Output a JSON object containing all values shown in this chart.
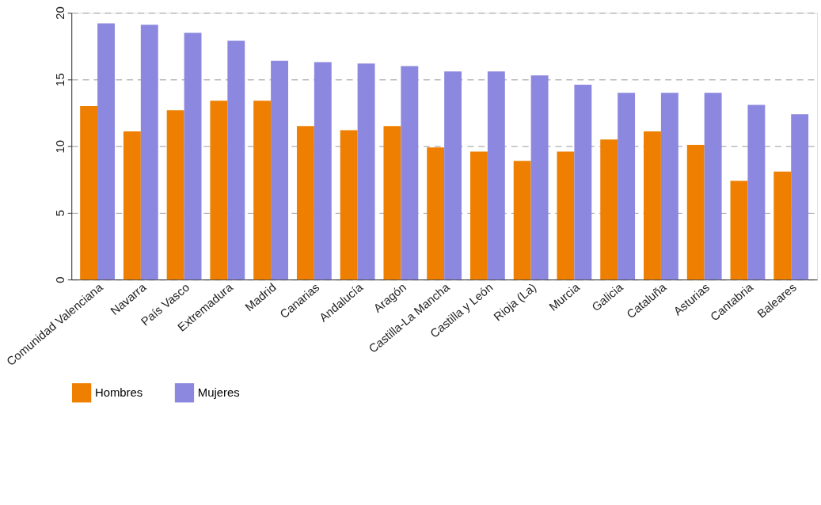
{
  "chart_data": {
    "type": "bar",
    "categories": [
      "Comunidad Valenciana",
      "Navarra",
      "País Vasco",
      "Extremadura",
      "Madrid",
      "Canarias",
      "Andalucía",
      "Aragón",
      "Castilla-La Mancha",
      "Castilla y León",
      "Rioja (La)",
      "Murcia",
      "Galicia",
      "Cataluña",
      "Asturias",
      "Cantabria",
      "Baleares"
    ],
    "series": [
      {
        "name": "Hombres",
        "color": "#ee7f00",
        "values": [
          13.0,
          11.1,
          12.7,
          13.4,
          13.4,
          11.5,
          11.2,
          11.5,
          9.9,
          9.6,
          8.9,
          9.6,
          10.5,
          11.1,
          10.1,
          7.4,
          8.1
        ]
      },
      {
        "name": "Mujeres",
        "color": "#8c88e0",
        "values": [
          19.2,
          19.1,
          18.5,
          17.9,
          16.4,
          16.3,
          16.2,
          16.0,
          15.6,
          15.6,
          15.3,
          14.6,
          14.0,
          14.0,
          14.0,
          13.1,
          12.4
        ]
      }
    ],
    "ylim": [
      0,
      20
    ],
    "yticks": [
      0,
      5,
      10,
      15,
      20
    ],
    "grid": "y",
    "legend": "bottom"
  }
}
